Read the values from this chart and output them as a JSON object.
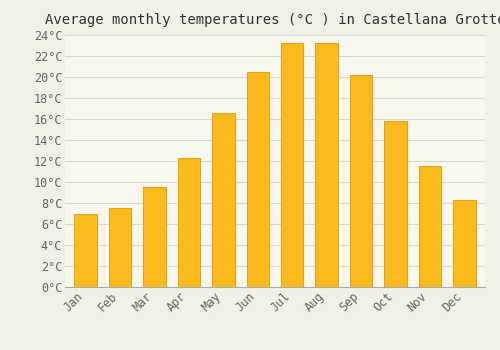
{
  "title": "Average monthly temperatures (°C ) in Castellana Grotte",
  "months": [
    "Jan",
    "Feb",
    "Mar",
    "Apr",
    "May",
    "Jun",
    "Jul",
    "Aug",
    "Sep",
    "Oct",
    "Nov",
    "Dec"
  ],
  "values": [
    7.0,
    7.5,
    9.5,
    12.3,
    16.6,
    20.5,
    23.2,
    23.2,
    20.2,
    15.8,
    11.5,
    8.3
  ],
  "bar_color": "#FBBA1C",
  "bar_edge_color": "#E8A010",
  "background_color": "#F0F0E8",
  "plot_bg_color": "#F8F8F0",
  "grid_color": "#D8D8D0",
  "ylim": [
    0,
    24
  ],
  "ytick_step": 2,
  "title_fontsize": 10,
  "tick_fontsize": 8.5,
  "font_family": "monospace"
}
